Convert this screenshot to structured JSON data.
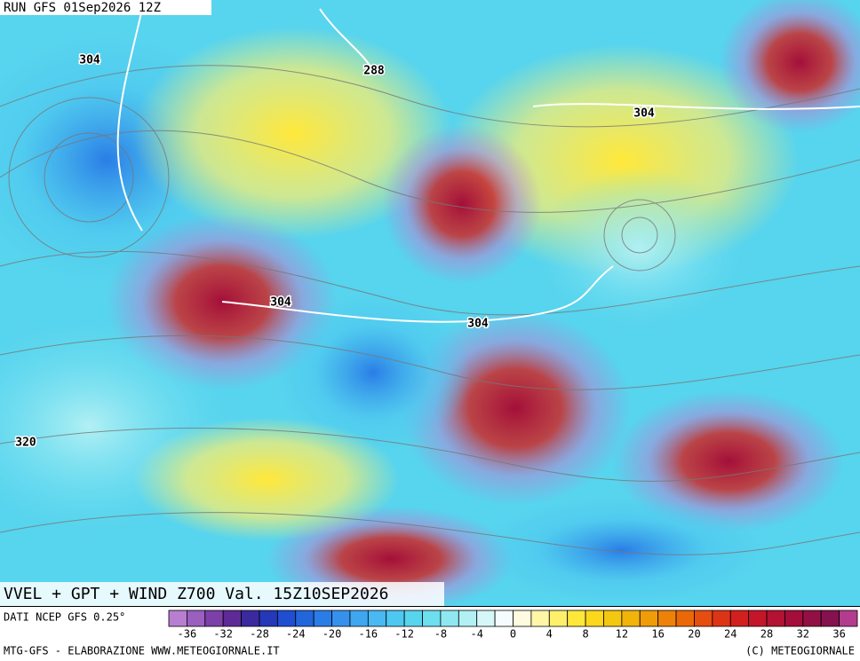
{
  "header": {
    "run": "RUN GFS 01Sep2026 12Z"
  },
  "map": {
    "contour_labels": [
      304,
      288,
      304,
      304,
      304,
      320
    ]
  },
  "title": "VVEL + GPT + WIND Z700 Val. 15Z10SEP2026",
  "source": "DATI NCEP GFS 0.25°",
  "colorbar": {
    "range": [
      -38,
      38
    ],
    "ticks": [
      -36,
      -32,
      -28,
      -24,
      -20,
      -16,
      -12,
      -8,
      -4,
      0,
      4,
      8,
      12,
      16,
      20,
      24,
      28,
      32,
      36
    ],
    "colors": [
      "#b87fd0",
      "#9a5fbf",
      "#7d3fa8",
      "#5e2a96",
      "#3a2a9e",
      "#2438b8",
      "#1f4fd0",
      "#2266dc",
      "#2a7de6",
      "#3591ec",
      "#3fa6f0",
      "#48b9f2",
      "#4ec8f0",
      "#57d4ee",
      "#6ddfef",
      "#8fe8f1",
      "#b2f0f4",
      "#d6f7f8",
      "#f5fcff",
      "#fffbe0",
      "#fff6a8",
      "#fff06c",
      "#ffe83a",
      "#fbd81c",
      "#f5c810",
      "#f2b40a",
      "#f09c08",
      "#ee8208",
      "#eb6808",
      "#e64d10",
      "#de3416",
      "#d2201e",
      "#c41628",
      "#b31232",
      "#a30f3a",
      "#931044",
      "#85124e",
      "#b43c8e"
    ]
  },
  "footer": {
    "left": "MTG-GFS - ELABORAZIONE WWW.METEOGIORNALE.IT",
    "right": "(C) METEOGIORNALE"
  }
}
